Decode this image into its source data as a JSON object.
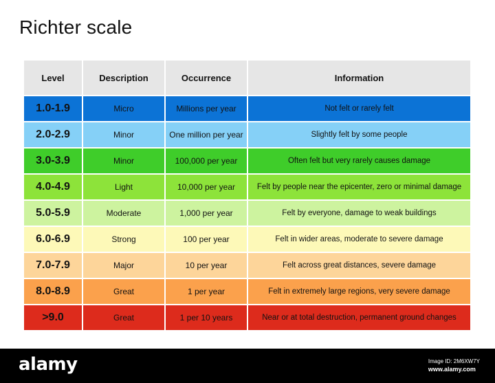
{
  "title": "Richter scale",
  "table": {
    "headers": [
      "Level",
      "Description",
      "Occurrence",
      "Information"
    ],
    "rows": [
      {
        "level": "1.0-1.9",
        "description": "Micro",
        "occurrence": "Millions per year",
        "information": "Not felt or rarely felt",
        "color": "#0c73d6"
      },
      {
        "level": "2.0-2.9",
        "description": "Minor",
        "occurrence": "One million per year",
        "information": "Slightly felt by some people",
        "color": "#85d0f7"
      },
      {
        "level": "3.0-3.9",
        "description": "Minor",
        "occurrence": "100,000 per year",
        "information": "Often felt but very rarely causes damage",
        "color": "#3fcd2a"
      },
      {
        "level": "4.0-4.9",
        "description": "Light",
        "occurrence": "10,000 per year",
        "information": "Felt by people near the epicenter, zero or minimal damage",
        "color": "#8de33a"
      },
      {
        "level": "5.0-5.9",
        "description": "Moderate",
        "occurrence": "1,000 per year",
        "information": "Felt by everyone, damage to weak buildings",
        "color": "#cdf39f"
      },
      {
        "level": "6.0-6.9",
        "description": "Strong",
        "occurrence": "100 per year",
        "information": "Felt in wider areas, moderate to severe damage",
        "color": "#fdf9b8"
      },
      {
        "level": "7.0-7.9",
        "description": "Major",
        "occurrence": "10 per year",
        "information": "Felt across great distances, severe damage",
        "color": "#fdd59a"
      },
      {
        "level": "8.0-8.9",
        "description": "Great",
        "occurrence": "1 per year",
        "information": "Felt in extremely large regions, very severe damage",
        "color": "#fba14c"
      },
      {
        "level": ">9.0",
        "description": "Great",
        "occurrence": "1 per 10 years",
        "information": "Near or at total destruction, permanent ground changes",
        "color": "#dd2b1c"
      }
    ]
  },
  "footer": {
    "logo": "alamy",
    "image_id": "Image ID: 2M6XW7Y",
    "site": "www.alamy.com"
  }
}
